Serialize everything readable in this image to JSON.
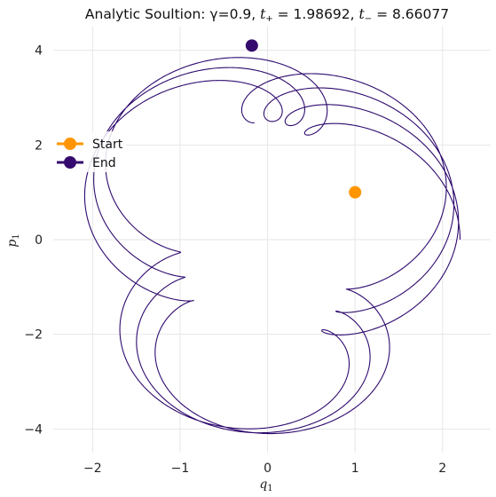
{
  "chart_data": {
    "type": "line",
    "title_prefix": "Analytic Soultion: γ=0.9, ",
    "title_t_plus_label": "t",
    "title_t_plus_sub": "+",
    "title_t_plus_value": " = 1.98692, ",
    "title_t_minus_label": "t",
    "title_t_minus_sub": "−",
    "title_t_minus_value": " = 8.66077",
    "xlabel_main": "q",
    "xlabel_sub": "1",
    "ylabel_main": "p",
    "ylabel_sub": "1",
    "xlim": [
      -2.45,
      2.55
    ],
    "ylim": [
      -4.5,
      4.5
    ],
    "xticks": [
      -2,
      -1,
      0,
      1,
      2
    ],
    "yticks": [
      -4,
      -2,
      0,
      2,
      4
    ],
    "grid": true,
    "trajectory": {
      "color": "#2e0a6e",
      "params": {
        "Ax": 1.6,
        "wx": 1.0,
        "Bx": 0.6,
        "wx2": 3.9,
        "Ay": 3.3,
        "wy": 1.0,
        "By": 0.8,
        "wy2": 3.9,
        "tmax": 20.6
      }
    },
    "points": [
      {
        "name": "Start",
        "q": 1.0,
        "p": 1.0,
        "color": "#ff9500"
      },
      {
        "name": "End",
        "q": -0.18,
        "p": 4.1,
        "color": "#350a6e"
      }
    ],
    "legend": {
      "position": "left",
      "entries": [
        {
          "label": "Start",
          "color": "#ff9500"
        },
        {
          "label": "End",
          "color": "#350a6e"
        }
      ]
    }
  }
}
